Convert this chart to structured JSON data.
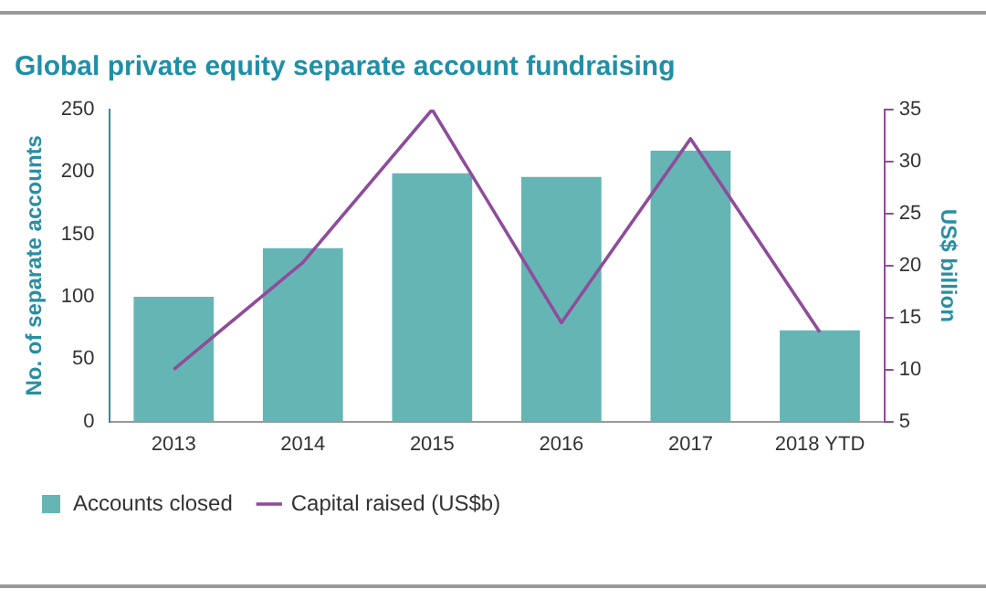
{
  "chart_data": {
    "type": "bar",
    "title": "Global private equity separate account fundraising",
    "categories": [
      "2013",
      "2014",
      "2015",
      "2016",
      "2017",
      "2018 YTD"
    ],
    "series": [
      {
        "name": "Accounts closed",
        "color": "#66b5b5",
        "values": [
          100,
          139,
          199,
          196,
          217,
          73
        ]
      },
      {
        "name": "Capital raised (US$b)",
        "type": "line",
        "axis": "y2",
        "color": "#8e4d9a",
        "values": [
          10,
          20.3,
          35,
          14.5,
          32.2,
          13.6
        ]
      }
    ],
    "ylabel": "No. of separate accounts",
    "y2label": "US$ billion",
    "ylim": [
      0,
      250
    ],
    "yticks": [
      0,
      50,
      100,
      150,
      200,
      250
    ],
    "y2lim": [
      5,
      35
    ],
    "y2ticks": [
      5,
      10,
      15,
      20,
      25,
      30,
      35
    ],
    "grid": false,
    "legend": "bottom",
    "marker": "none"
  }
}
